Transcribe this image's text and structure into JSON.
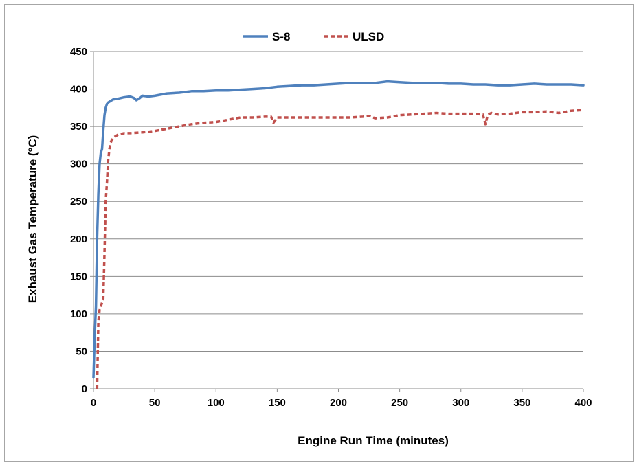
{
  "chart_data": {
    "type": "line",
    "xlabel": "Engine Run Time (minutes)",
    "ylabel": "Exhaust Gas Temperature (°C)",
    "xlim": [
      0,
      400
    ],
    "ylim": [
      0,
      450
    ],
    "xticks": [
      0,
      50,
      100,
      150,
      200,
      250,
      300,
      350,
      400
    ],
    "yticks": [
      0,
      50,
      100,
      150,
      200,
      250,
      300,
      350,
      400,
      450
    ],
    "grid": "horizontal",
    "legend_position": "top-center",
    "series": [
      {
        "name": "S-8",
        "color": "#4f81bd",
        "dash": "solid",
        "x": [
          0,
          1,
          2,
          3,
          4,
          5,
          6,
          7,
          8,
          9,
          10,
          11,
          12,
          14,
          16,
          20,
          25,
          30,
          33,
          35,
          38,
          40,
          45,
          50,
          60,
          70,
          80,
          90,
          100,
          110,
          120,
          130,
          140,
          150,
          160,
          170,
          180,
          190,
          200,
          210,
          220,
          230,
          240,
          250,
          260,
          270,
          280,
          290,
          300,
          310,
          320,
          330,
          340,
          350,
          360,
          370,
          380,
          390,
          400
        ],
        "y": [
          15,
          70,
          110,
          200,
          260,
          300,
          315,
          320,
          345,
          365,
          375,
          380,
          382,
          384,
          386,
          387,
          389,
          390,
          388,
          385,
          388,
          391,
          390,
          391,
          394,
          395,
          397,
          397,
          398,
          398,
          399,
          400,
          401,
          403,
          404,
          405,
          405,
          406,
          407,
          408,
          408,
          408,
          410,
          409,
          408,
          408,
          408,
          407,
          407,
          406,
          406,
          405,
          405,
          406,
          407,
          406,
          406,
          406,
          405
        ]
      },
      {
        "name": "ULSD",
        "color": "#c0504d",
        "dash": "dashed",
        "x": [
          3,
          4,
          5,
          6,
          7,
          8,
          9,
          10,
          11,
          12,
          13,
          14,
          15,
          17,
          20,
          25,
          30,
          40,
          50,
          60,
          70,
          80,
          90,
          100,
          110,
          120,
          130,
          140,
          145,
          147,
          150,
          160,
          170,
          180,
          190,
          200,
          210,
          220,
          225,
          230,
          240,
          250,
          260,
          270,
          280,
          290,
          300,
          310,
          318,
          320,
          322,
          325,
          330,
          340,
          350,
          360,
          370,
          380,
          390,
          400
        ],
        "y": [
          0,
          90,
          105,
          110,
          115,
          120,
          180,
          250,
          275,
          305,
          320,
          328,
          332,
          336,
          339,
          341,
          341,
          342,
          344,
          347,
          350,
          353,
          355,
          356,
          359,
          362,
          362,
          363,
          363,
          355,
          362,
          362,
          362,
          362,
          362,
          362,
          362,
          363,
          364,
          361,
          362,
          365,
          366,
          367,
          368,
          367,
          367,
          367,
          366,
          353,
          366,
          368,
          366,
          367,
          369,
          369,
          370,
          368,
          371,
          372
        ]
      }
    ]
  }
}
